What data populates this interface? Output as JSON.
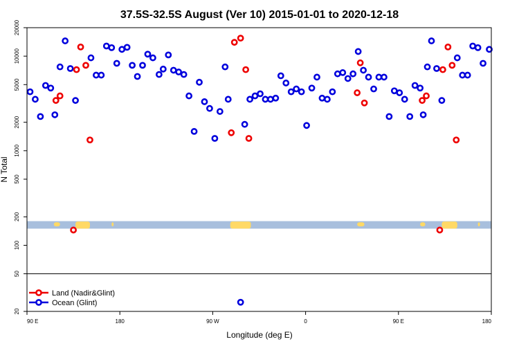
{
  "chart_data": {
    "type": "scatter",
    "title": "37.5S-32.5S August (Ver 10)   2015-01-01 to 2020-12-18",
    "xlabel": "Longitude (deg E)",
    "ylabel": "N Total",
    "x_ticks": [
      {
        "value": 90,
        "label": "90 E"
      },
      {
        "value": 180,
        "label": "180"
      },
      {
        "value": 270,
        "label": "90 W"
      },
      {
        "value": 360,
        "label": "0"
      },
      {
        "value": 450,
        "label": "90 E"
      },
      {
        "value": 540,
        "label": "180"
      }
    ],
    "y_ticks": [
      {
        "value": 20,
        "label": "20"
      },
      {
        "value": 50,
        "label": "50"
      },
      {
        "value": 100,
        "label": "100"
      },
      {
        "value": 200,
        "label": "200"
      },
      {
        "value": 500,
        "label": "500"
      },
      {
        "value": 1000,
        "label": "1000"
      },
      {
        "value": 2000,
        "label": "2000"
      },
      {
        "value": 5000,
        "label": "5000"
      },
      {
        "value": 10000,
        "label": "10000"
      },
      {
        "value": 20000,
        "label": "20000"
      }
    ],
    "xlim": [
      90,
      540
    ],
    "ylim": [
      20,
      20000
    ],
    "y_scale": "log",
    "legend_position": "bottom-left",
    "series": [
      {
        "name": "Land (Nadir&Glint)",
        "color": "#ee0000",
        "points": [
          [
            118,
            3400
          ],
          [
            122,
            3800
          ],
          [
            135,
            145
          ],
          [
            138,
            7200
          ],
          [
            142,
            12500
          ],
          [
            147,
            8000
          ],
          [
            151,
            1300
          ],
          [
            288,
            1550
          ],
          [
            291,
            14000
          ],
          [
            297,
            15500
          ],
          [
            302,
            7200
          ],
          [
            305,
            1350
          ],
          [
            410,
            4100
          ],
          [
            413,
            8500
          ],
          [
            417,
            3200
          ],
          [
            473,
            3400
          ],
          [
            477,
            3800
          ],
          [
            490,
            145
          ],
          [
            493,
            7200
          ],
          [
            498,
            12500
          ],
          [
            502,
            8000
          ],
          [
            506,
            1300
          ]
        ]
      },
      {
        "name": "Ocean (Glint)",
        "color": "#0000dd",
        "points": [
          [
            93,
            4200
          ],
          [
            98,
            3500
          ],
          [
            103,
            2300
          ],
          [
            108,
            4900
          ],
          [
            113,
            4600
          ],
          [
            117,
            2400
          ],
          [
            122,
            7700
          ],
          [
            127,
            14500
          ],
          [
            132,
            7400
          ],
          [
            137,
            3400
          ],
          [
            152,
            9600
          ],
          [
            157,
            6300
          ],
          [
            162,
            6300
          ],
          [
            167,
            12800
          ],
          [
            172,
            12300
          ],
          [
            177,
            8400
          ],
          [
            182,
            11800
          ],
          [
            187,
            12400
          ],
          [
            192,
            8000
          ],
          [
            197,
            6100
          ],
          [
            202,
            8000
          ],
          [
            207,
            10500
          ],
          [
            212,
            9600
          ],
          [
            218,
            6400
          ],
          [
            222,
            7300
          ],
          [
            227,
            10300
          ],
          [
            232,
            7100
          ],
          [
            237,
            6800
          ],
          [
            242,
            6400
          ],
          [
            247,
            3800
          ],
          [
            252,
            1600
          ],
          [
            257,
            5300
          ],
          [
            262,
            3300
          ],
          [
            267,
            2800
          ],
          [
            272,
            1350
          ],
          [
            277,
            2600
          ],
          [
            282,
            7700
          ],
          [
            285,
            3500
          ],
          [
            297,
            25
          ],
          [
            301,
            1900
          ],
          [
            306,
            3500
          ],
          [
            311,
            3800
          ],
          [
            316,
            4000
          ],
          [
            321,
            3500
          ],
          [
            326,
            3500
          ],
          [
            331,
            3600
          ],
          [
            336,
            6200
          ],
          [
            341,
            5200
          ],
          [
            346,
            4200
          ],
          [
            351,
            4500
          ],
          [
            356,
            4200
          ],
          [
            361,
            1850
          ],
          [
            366,
            4600
          ],
          [
            371,
            6000
          ],
          [
            376,
            3600
          ],
          [
            381,
            3500
          ],
          [
            386,
            4200
          ],
          [
            391,
            6500
          ],
          [
            396,
            6700
          ],
          [
            401,
            5800
          ],
          [
            406,
            6500
          ],
          [
            411,
            11200
          ],
          [
            416,
            7100
          ],
          [
            421,
            6000
          ],
          [
            426,
            4500
          ],
          [
            431,
            6000
          ],
          [
            436,
            6000
          ],
          [
            441,
            2300
          ],
          [
            446,
            4300
          ],
          [
            451,
            4100
          ],
          [
            456,
            3500
          ],
          [
            461,
            2300
          ],
          [
            466,
            4900
          ],
          [
            471,
            4600
          ],
          [
            474,
            2400
          ],
          [
            478,
            7700
          ],
          [
            482,
            14500
          ],
          [
            487,
            7400
          ],
          [
            492,
            3400
          ],
          [
            507,
            9600
          ],
          [
            512,
            6300
          ],
          [
            517,
            6300
          ],
          [
            522,
            12800
          ],
          [
            527,
            12300
          ],
          [
            532,
            8400
          ],
          [
            538,
            11800
          ]
        ]
      }
    ],
    "map_strip": {
      "y_range": [
        150,
        180
      ],
      "ocean_color": "#a8bfdd",
      "land_color": "#ffd966",
      "land_spans": [
        [
          116,
          122,
          "left"
        ],
        [
          137,
          151,
          "bottom"
        ],
        [
          172,
          174,
          "left"
        ],
        [
          287,
          307,
          "bottom"
        ],
        [
          410,
          417,
          "left"
        ],
        [
          471,
          476,
          "left"
        ],
        [
          492,
          507,
          "bottom"
        ],
        [
          527,
          529,
          "left"
        ]
      ]
    },
    "reference_line": 50
  }
}
